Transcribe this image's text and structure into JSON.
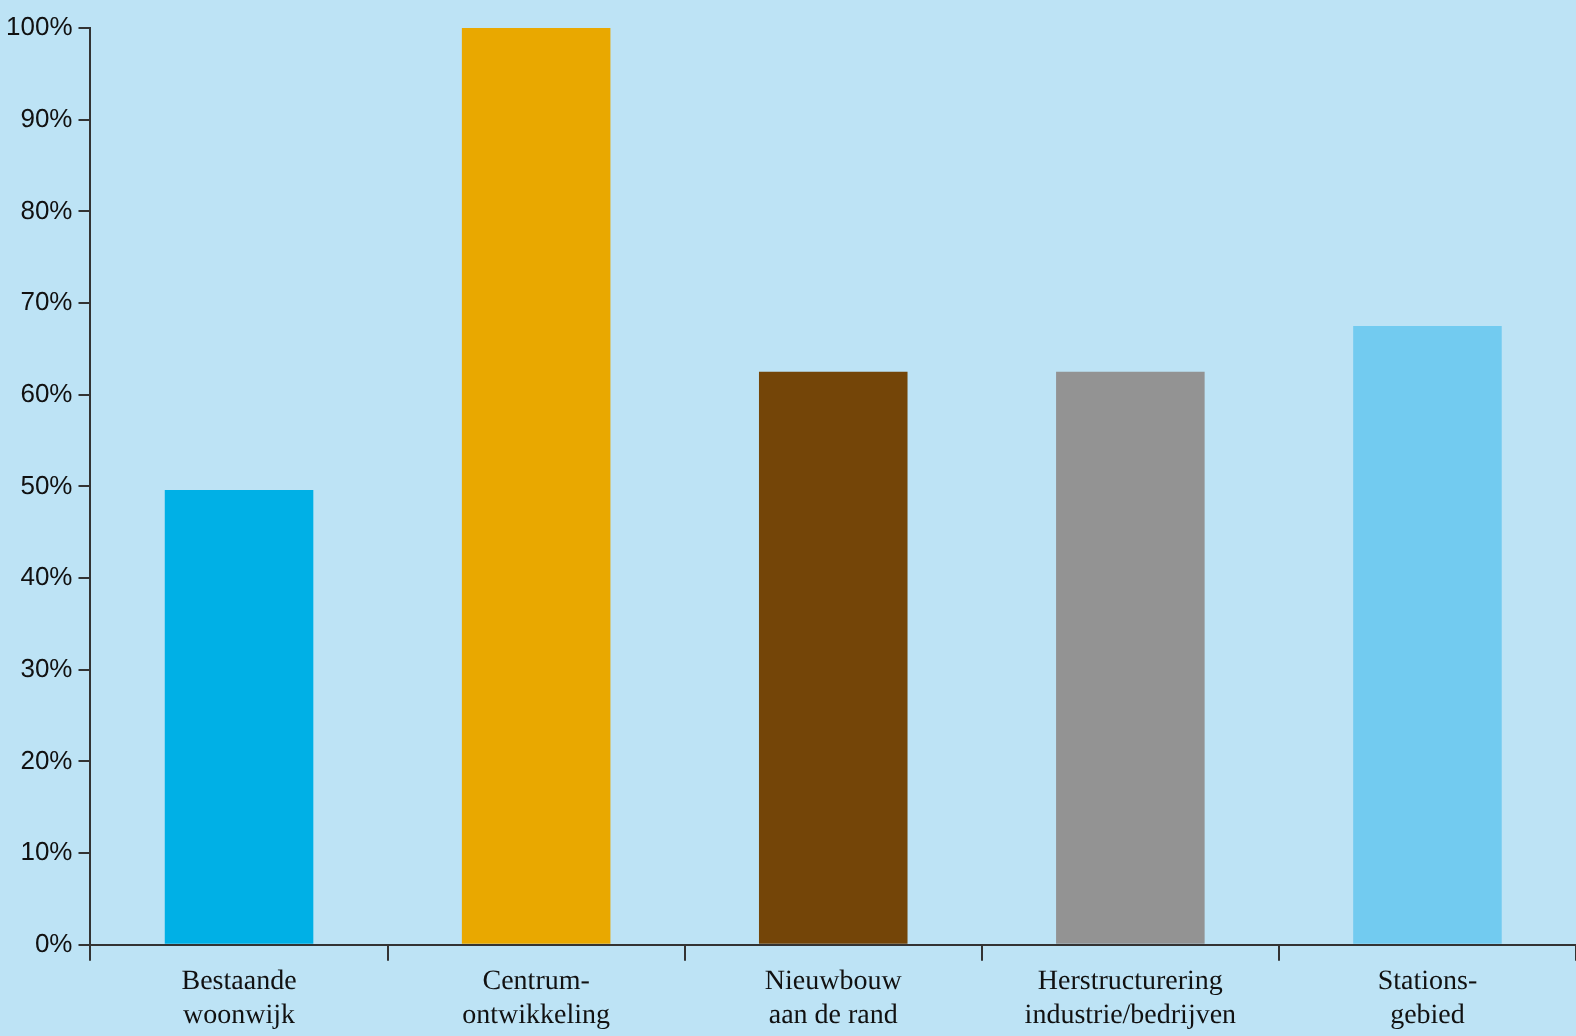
{
  "chart_data": {
    "type": "bar",
    "categories": [
      "Bestaande\nwoonwijk",
      "Centrum-\nontwikkeling",
      "Nieuwbouw\naan de rand",
      "Herstructurering\nindustrie/bedrijven",
      "Stations-\ngebied"
    ],
    "values": [
      49.6,
      100,
      62.5,
      62.5,
      67.5
    ],
    "colors": [
      "#00b0e6",
      "#e9a800",
      "#744508",
      "#939393",
      "#72cbf0"
    ],
    "ylim": [
      0,
      100
    ],
    "yticks": [
      {
        "value": 0,
        "label": "0%"
      },
      {
        "value": 10,
        "label": "10%"
      },
      {
        "value": 20,
        "label": "20%"
      },
      {
        "value": 30,
        "label": "30%"
      },
      {
        "value": 40,
        "label": "40%"
      },
      {
        "value": 50,
        "label": "50%"
      },
      {
        "value": 60,
        "label": "60%"
      },
      {
        "value": 70,
        "label": "70%"
      },
      {
        "value": 80,
        "label": "80%"
      },
      {
        "value": 90,
        "label": "90%"
      },
      {
        "value": 100,
        "label": "100%"
      }
    ],
    "grid": false,
    "legend": false
  }
}
